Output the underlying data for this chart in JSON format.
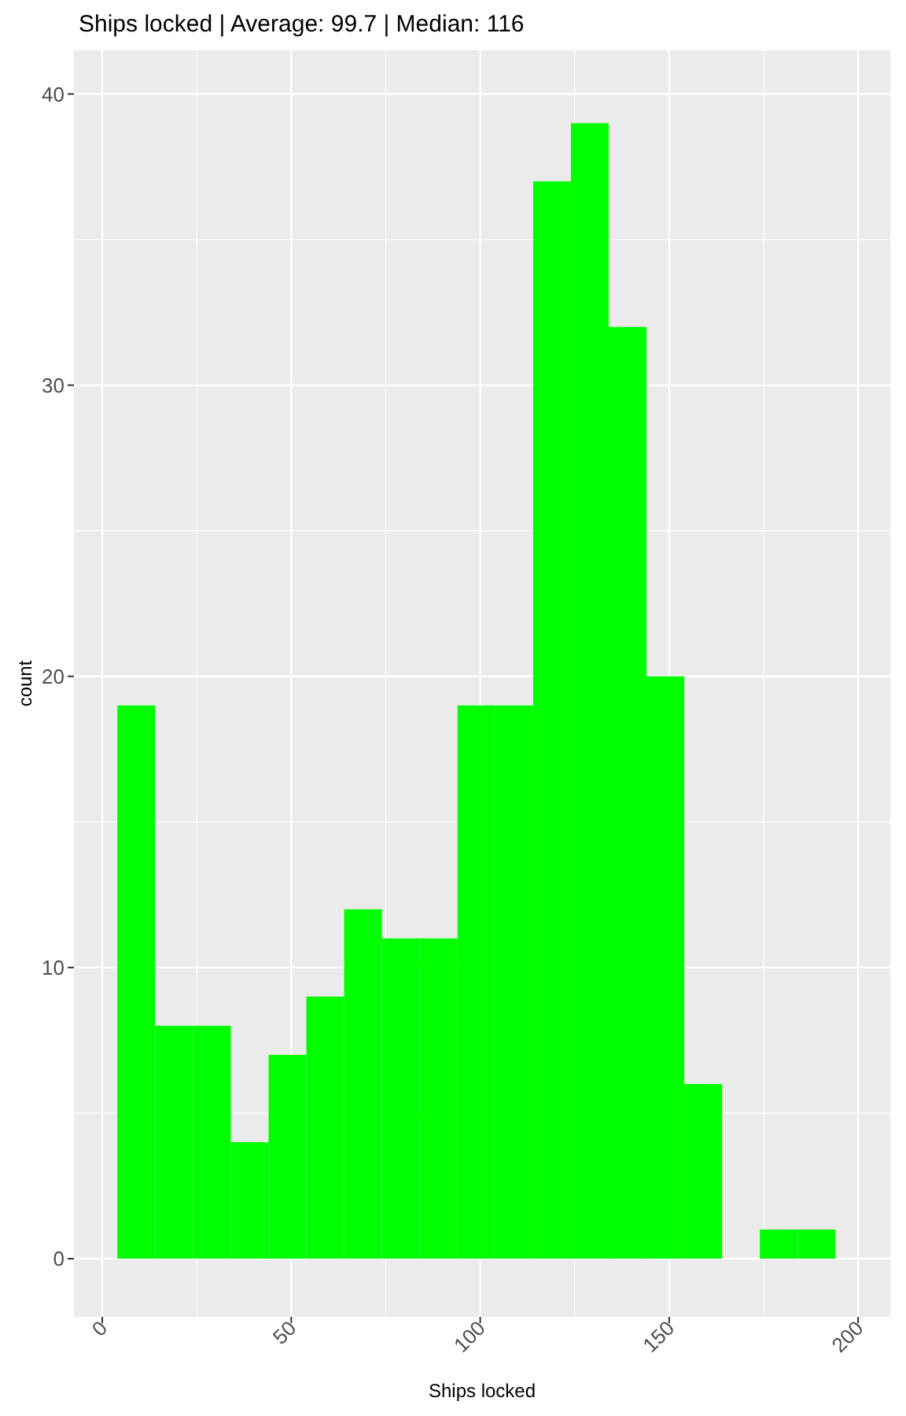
{
  "chart_data": {
    "type": "histogram",
    "title": "Ships locked | Average: 99.7 | Median: 116",
    "xlabel": "Ships locked",
    "ylabel": "count",
    "bins": [
      4,
      14,
      24,
      34,
      44,
      54,
      64,
      74,
      84,
      94,
      104,
      114,
      124,
      134,
      144,
      154,
      164,
      174,
      184,
      194
    ],
    "values": [
      19,
      8,
      8,
      4,
      7,
      9,
      12,
      11,
      11,
      19,
      19,
      37,
      39,
      32,
      20,
      6,
      0,
      1,
      1
    ],
    "color": "#00ff00",
    "xlim": [
      -7.5,
      208.5
    ],
    "ylim": [
      -2,
      41.5
    ],
    "xticks": [
      0,
      50,
      100,
      150,
      200
    ],
    "yticks": [
      0,
      10,
      20,
      30,
      40
    ],
    "grid": true
  }
}
